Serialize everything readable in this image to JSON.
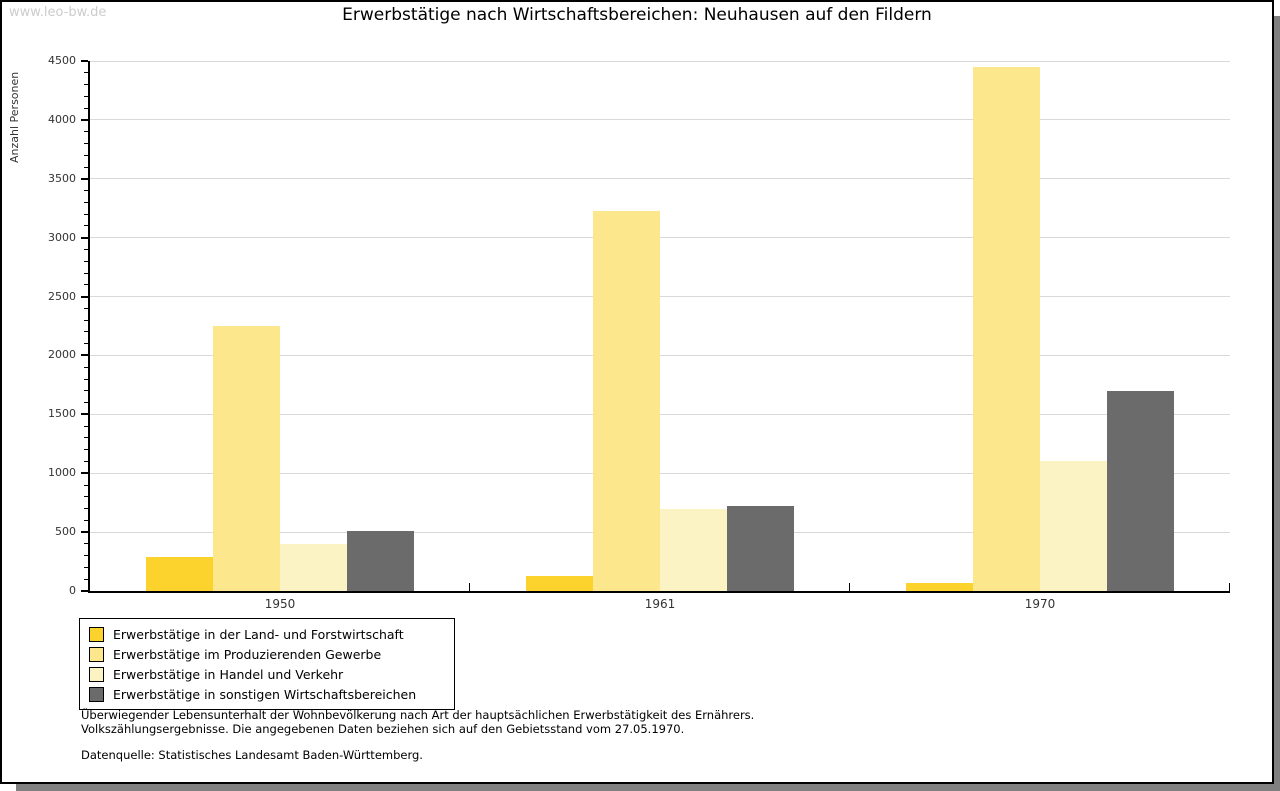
{
  "watermark": "www.leo-bw.de",
  "title": "Erwerbstätige nach Wirtschaftsbereichen: Neuhausen auf den Fildern",
  "chart_data": {
    "type": "bar",
    "title": "Erwerbstätige nach Wirtschaftsbereichen: Neuhausen auf den Fildern",
    "xlabel": "",
    "ylabel": "Anzahl Personen",
    "ylim": [
      0,
      4500
    ],
    "ytick_step": 500,
    "minor_tick_step": 100,
    "grid": true,
    "legend_position": "bottom-left",
    "categories": [
      "1950",
      "1961",
      "1970"
    ],
    "series": [
      {
        "name": "Erwerbstätige in der Land- und Forstwirtschaft",
        "color": "#fbd32c",
        "values": [
          290,
          125,
          70
        ]
      },
      {
        "name": "Erwerbstätige im Produzierenden Gewerbe",
        "color": "#fce78d",
        "values": [
          2250,
          3225,
          4445
        ]
      },
      {
        "name": "Erwerbstätige in Handel und Verkehr",
        "color": "#fbf3c4",
        "values": [
          395,
          700,
          1105
        ]
      },
      {
        "name": "Erwerbstätige in sonstigen Wirtschaftsbereichen",
        "color": "#6b6b6b",
        "values": [
          510,
          725,
          1700
        ]
      }
    ]
  },
  "footer": {
    "line1": "Überwiegender Lebensunterhalt der Wohnbevölkerung nach Art der hauptsächlichen Erwerbstätigkeit des Ernährers.",
    "line2": "Volkszählungsergebnisse. Die angegebenen Daten beziehen sich auf den Gebietsstand vom 27.05.1970.",
    "source": "Datenquelle: Statistisches Landesamt Baden-Württemberg."
  }
}
